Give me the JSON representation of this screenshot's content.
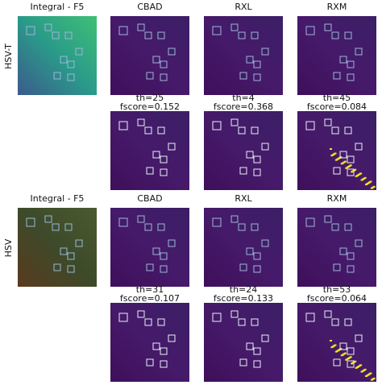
{
  "blocks": [
    {
      "row_label": "HSV-T",
      "headers": [
        "Integral - F5",
        "CBAD",
        "RXL",
        "RXM"
      ],
      "results": [
        {
          "th": "th=25",
          "fscore": "fscore=0.152"
        },
        {
          "th": "th=4",
          "fscore": "fscore=0.368"
        },
        {
          "th": "th=45",
          "fscore": "fscore=0.084"
        }
      ]
    },
    {
      "row_label": "HSV",
      "headers": [
        "Integral - F5",
        "CBAD",
        "RXL",
        "RXM"
      ],
      "results": [
        {
          "th": "th=31",
          "fscore": "fscore=0.107"
        },
        {
          "th": "th=24",
          "fscore": "fscore=0.133"
        },
        {
          "th": "th=53",
          "fscore": "fscore=0.064"
        }
      ]
    }
  ]
}
